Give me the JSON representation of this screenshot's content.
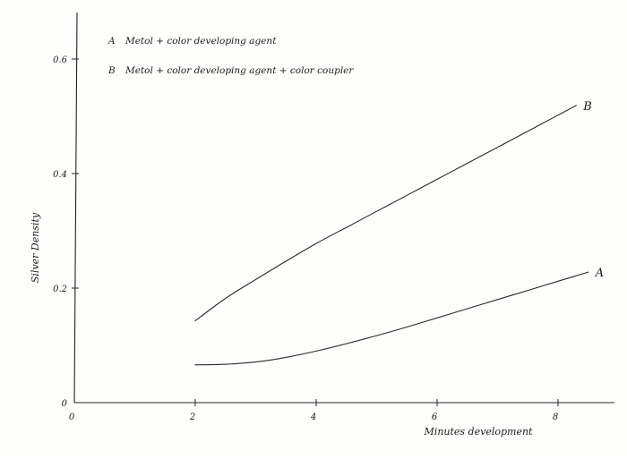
{
  "chart_data": {
    "type": "line",
    "title": "",
    "xlabel": "Minutes development",
    "ylabel": "Silver Density",
    "xlim": [
      0,
      8.8
    ],
    "ylim": [
      0,
      0.68
    ],
    "x_ticks": [
      {
        "value": 0,
        "label": "0"
      },
      {
        "value": 2,
        "label": "2"
      },
      {
        "value": 4,
        "label": "4"
      },
      {
        "value": 6,
        "label": "6"
      },
      {
        "value": 8,
        "label": "8"
      }
    ],
    "y_ticks": [
      {
        "value": 0,
        "label": "0"
      },
      {
        "value": 0.2,
        "label": "0.2"
      },
      {
        "value": 0.4,
        "label": "0.4"
      },
      {
        "value": 0.6,
        "label": "0.6"
      }
    ],
    "grid": false,
    "legend": {
      "placement": "top-left",
      "entries": [
        {
          "key": "A",
          "text": "Metol + color developing agent"
        },
        {
          "key": "B",
          "text": "Metol + color developing agent + color coupler"
        }
      ]
    },
    "series": [
      {
        "name": "A",
        "color": "#2a2a2a",
        "x": [
          2.0,
          2.5,
          3.0,
          3.5,
          4.0,
          4.5,
          5.0,
          5.5,
          6.0,
          6.5,
          7.0,
          7.5,
          8.0,
          8.5
        ],
        "y": [
          0.066,
          0.067,
          0.071,
          0.079,
          0.09,
          0.103,
          0.117,
          0.132,
          0.148,
          0.164,
          0.18,
          0.196,
          0.212,
          0.228
        ]
      },
      {
        "name": "B",
        "color": "#2a2a2a",
        "x": [
          2.0,
          2.5,
          3.0,
          3.5,
          4.0,
          4.5,
          5.0,
          5.5,
          6.0,
          6.5,
          7.0,
          7.5,
          8.0,
          8.3
        ],
        "y": [
          0.143,
          0.182,
          0.215,
          0.247,
          0.278,
          0.306,
          0.334,
          0.362,
          0.39,
          0.418,
          0.446,
          0.474,
          0.502,
          0.519
        ]
      }
    ]
  }
}
